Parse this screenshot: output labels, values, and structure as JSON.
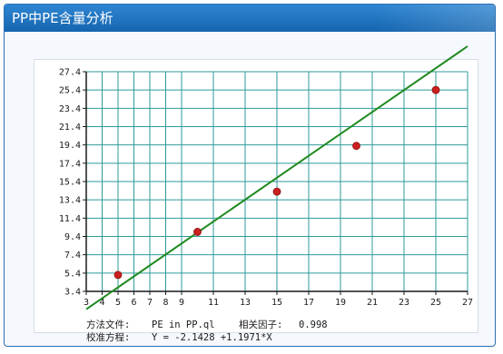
{
  "header": {
    "title": "PP中PE含量分析"
  },
  "chart_data": {
    "type": "scatter",
    "title": "",
    "xlabel": "",
    "ylabel": "",
    "xlim": [
      3,
      27
    ],
    "ylim": [
      3.4,
      27.4
    ],
    "grid": true,
    "x_ticks": [
      3,
      4,
      5,
      6,
      7,
      8,
      9,
      11,
      13,
      15,
      17,
      19,
      21,
      23,
      25,
      27
    ],
    "y_ticks": [
      3.4,
      5.4,
      7.4,
      9.4,
      11.4,
      13.4,
      15.4,
      17.4,
      19.4,
      21.4,
      23.4,
      25.4,
      27.4
    ],
    "x_tick_labels": [
      "3",
      "4",
      "5",
      "6",
      "7",
      "8",
      "9",
      "11",
      "13",
      "15",
      "17",
      "19",
      "21",
      "23",
      "25",
      "27"
    ],
    "y_tick_labels": [
      "3.4",
      "5.4",
      "7.4",
      "9.4",
      "11.4",
      "13.4",
      "15.4",
      "17.4",
      "19.4",
      "21.4",
      "23.4",
      "25.4",
      "27.4"
    ],
    "points": [
      {
        "x": 5,
        "y": 5.2
      },
      {
        "x": 10,
        "y": 9.9
      },
      {
        "x": 15,
        "y": 14.3
      },
      {
        "x": 20,
        "y": 19.3
      },
      {
        "x": 25,
        "y": 25.4
      }
    ],
    "fit_line": {
      "intercept": -2.1428,
      "slope": 1.1971,
      "x_range": [
        3,
        27
      ]
    },
    "colors": {
      "grid": "#2f9a9a",
      "line": "#1f8a1f",
      "points": "#cc1f1f",
      "axis": "#1a1a1a"
    }
  },
  "captions": {
    "method_label": "方法文件:",
    "method_value": "PE in PP.ql",
    "corr_label": "相关因子:",
    "corr_value": "0.998",
    "equation_label": "校准方程:",
    "equation_value": "Y = -2.1428 +1.1971*X"
  }
}
